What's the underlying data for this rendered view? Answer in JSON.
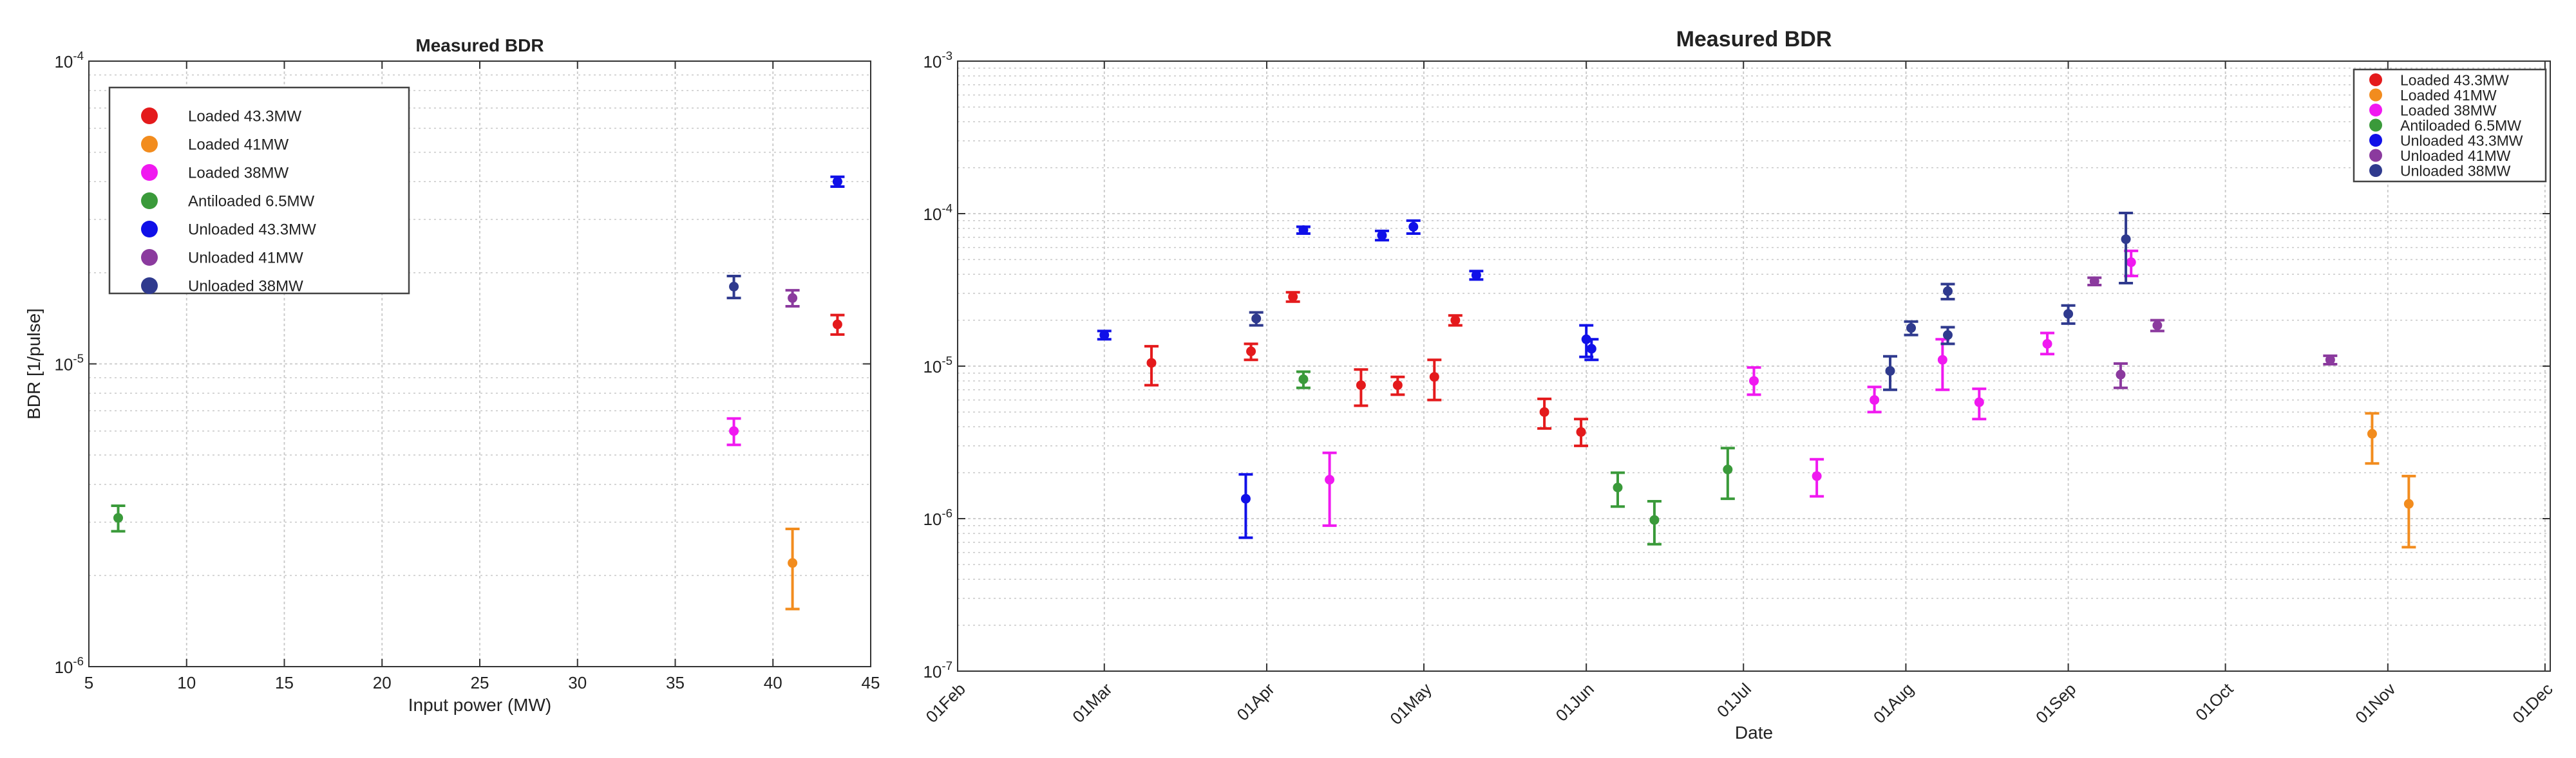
{
  "colors": {
    "series": [
      "#e41a1c",
      "#f28c1e",
      "#f019f0",
      "#3a9a3a",
      "#1010e8",
      "#8b3a9e",
      "#2f3a8e"
    ],
    "grid": "#c8c8c8",
    "axis": "#333333"
  },
  "chart_data": [
    {
      "type": "scatter",
      "title": "Measured BDR",
      "xlabel": "Input power (MW)",
      "ylabel": "BDR [1/pulse]",
      "xlim": [
        5,
        45
      ],
      "ylim": [
        1e-06,
        0.0001
      ],
      "yscale": "log",
      "x_ticks": [
        5,
        10,
        15,
        20,
        25,
        30,
        35,
        40,
        45
      ],
      "x_tick_labels": [
        "5",
        "10",
        "15",
        "20",
        "25",
        "30",
        "35",
        "40",
        "45"
      ],
      "y_ticks": [
        {
          "value": 1e-06,
          "base": "10",
          "exp": "-6"
        },
        {
          "value": 1e-05,
          "base": "10",
          "exp": "-5"
        },
        {
          "value": 0.0001,
          "base": "10",
          "exp": "-4"
        }
      ],
      "legend_position": "top-left",
      "series": [
        {
          "name": "Loaded 43.3MW",
          "points": [
            {
              "x": 43.3,
              "y": 1.35e-05,
              "lo": 1.25e-05,
              "hi": 1.45e-05
            }
          ]
        },
        {
          "name": "Loaded 41MW",
          "points": [
            {
              "x": 41.0,
              "y": 2.2e-06,
              "lo": 1.55e-06,
              "hi": 2.85e-06
            }
          ]
        },
        {
          "name": "Loaded 38MW",
          "points": [
            {
              "x": 38.0,
              "y": 6e-06,
              "lo": 5.4e-06,
              "hi": 6.6e-06
            }
          ]
        },
        {
          "name": "Antiloaded 6.5MW",
          "points": [
            {
              "x": 6.5,
              "y": 3.1e-06,
              "lo": 2.8e-06,
              "hi": 3.4e-06
            }
          ]
        },
        {
          "name": "Unloaded 43.3MW",
          "points": [
            {
              "x": 43.3,
              "y": 4e-05,
              "lo": 3.85e-05,
              "hi": 4.15e-05
            }
          ]
        },
        {
          "name": "Unloaded 41MW",
          "points": [
            {
              "x": 41.0,
              "y": 1.65e-05,
              "lo": 1.55e-05,
              "hi": 1.75e-05
            }
          ]
        },
        {
          "name": "Unloaded 38MW",
          "points": [
            {
              "x": 38.0,
              "y": 1.8e-05,
              "lo": 1.65e-05,
              "hi": 1.95e-05
            }
          ]
        }
      ]
    },
    {
      "type": "scatter",
      "title": "Measured BDR",
      "xlabel": "Date",
      "ylabel": "",
      "xlim": [
        0,
        304
      ],
      "x_unit": "days since 01 Feb",
      "ylim": [
        1e-07,
        0.001
      ],
      "yscale": "log",
      "x_ticks": [
        0,
        28,
        59,
        89,
        120,
        150,
        181,
        212,
        242,
        273,
        303
      ],
      "x_tick_labels": [
        "01Feb",
        "01Mar",
        "01Apr",
        "01May",
        "01Jun",
        "01Jul",
        "01Aug",
        "01Sep",
        "01Oct",
        "01Nov",
        "01Dec"
      ],
      "y_ticks": [
        {
          "value": 1e-07,
          "base": "10",
          "exp": "-7"
        },
        {
          "value": 1e-06,
          "base": "10",
          "exp": "-6"
        },
        {
          "value": 1e-05,
          "base": "10",
          "exp": "-5"
        },
        {
          "value": 0.0001,
          "base": "10",
          "exp": "-4"
        },
        {
          "value": 0.001,
          "base": "10",
          "exp": "-3"
        }
      ],
      "legend_position": "top-right",
      "series": [
        {
          "name": "Loaded 43.3MW",
          "points": [
            {
              "x": 37,
              "y": 1.05e-05,
              "lo": 7.5e-06,
              "hi": 1.35e-05
            },
            {
              "x": 56,
              "y": 1.25e-05,
              "lo": 1.1e-05,
              "hi": 1.4e-05
            },
            {
              "x": 64,
              "y": 2.85e-05,
              "lo": 2.65e-05,
              "hi": 3.05e-05
            },
            {
              "x": 77,
              "y": 7.5e-06,
              "lo": 5.5e-06,
              "hi": 9.5e-06
            },
            {
              "x": 84,
              "y": 7.5e-06,
              "lo": 6.5e-06,
              "hi": 8.5e-06
            },
            {
              "x": 91,
              "y": 8.5e-06,
              "lo": 6e-06,
              "hi": 1.1e-05
            },
            {
              "x": 95,
              "y": 2e-05,
              "lo": 1.85e-05,
              "hi": 2.15e-05
            },
            {
              "x": 112,
              "y": 5e-06,
              "lo": 3.9e-06,
              "hi": 6.1e-06
            },
            {
              "x": 119,
              "y": 3.7e-06,
              "lo": 3e-06,
              "hi": 4.5e-06
            }
          ]
        },
        {
          "name": "Loaded 41MW",
          "points": [
            {
              "x": 270,
              "y": 3.6e-06,
              "lo": 2.3e-06,
              "hi": 4.9e-06
            },
            {
              "x": 277,
              "y": 1.25e-06,
              "lo": 6.5e-07,
              "hi": 1.9e-06
            }
          ]
        },
        {
          "name": "Loaded 38MW",
          "points": [
            {
              "x": 71,
              "y": 1.8e-06,
              "lo": 9e-07,
              "hi": 2.7e-06
            },
            {
              "x": 152,
              "y": 8e-06,
              "lo": 6.5e-06,
              "hi": 9.8e-06
            },
            {
              "x": 164,
              "y": 1.9e-06,
              "lo": 1.4e-06,
              "hi": 2.45e-06
            },
            {
              "x": 175,
              "y": 6e-06,
              "lo": 5e-06,
              "hi": 7.3e-06
            },
            {
              "x": 188,
              "y": 1.1e-05,
              "lo": 7e-06,
              "hi": 1.5e-05
            },
            {
              "x": 195,
              "y": 5.8e-06,
              "lo": 4.5e-06,
              "hi": 7.1e-06
            },
            {
              "x": 208,
              "y": 1.4e-05,
              "lo": 1.2e-05,
              "hi": 1.65e-05
            },
            {
              "x": 224,
              "y": 4.8e-05,
              "lo": 3.9e-05,
              "hi": 5.7e-05
            }
          ]
        },
        {
          "name": "Antiloaded 6.5MW",
          "points": [
            {
              "x": 66,
              "y": 8.2e-06,
              "lo": 7.2e-06,
              "hi": 9.2e-06
            },
            {
              "x": 126,
              "y": 1.6e-06,
              "lo": 1.2e-06,
              "hi": 2e-06
            },
            {
              "x": 133,
              "y": 9.8e-07,
              "lo": 6.8e-07,
              "hi": 1.3e-06
            },
            {
              "x": 147,
              "y": 2.1e-06,
              "lo": 1.35e-06,
              "hi": 2.9e-06
            }
          ]
        },
        {
          "name": "Unloaded 43.3MW",
          "points": [
            {
              "x": 28,
              "y": 1.6e-05,
              "lo": 1.5e-05,
              "hi": 1.7e-05
            },
            {
              "x": 55,
              "y": 1.35e-06,
              "lo": 7.5e-07,
              "hi": 1.95e-06
            },
            {
              "x": 66,
              "y": 7.8e-05,
              "lo": 7.4e-05,
              "hi": 8.2e-05
            },
            {
              "x": 81,
              "y": 7.2e-05,
              "lo": 6.7e-05,
              "hi": 7.7e-05
            },
            {
              "x": 87,
              "y": 8.2e-05,
              "lo": 7.4e-05,
              "hi": 9e-05
            },
            {
              "x": 99,
              "y": 3.95e-05,
              "lo": 3.7e-05,
              "hi": 4.2e-05
            },
            {
              "x": 120,
              "y": 1.5e-05,
              "lo": 1.15e-05,
              "hi": 1.85e-05
            },
            {
              "x": 121,
              "y": 1.3e-05,
              "lo": 1.1e-05,
              "hi": 1.5e-05
            }
          ]
        },
        {
          "name": "Unloaded 41MW",
          "points": [
            {
              "x": 217,
              "y": 3.6e-05,
              "lo": 3.4e-05,
              "hi": 3.8e-05
            },
            {
              "x": 222,
              "y": 8.8e-06,
              "lo": 7.2e-06,
              "hi": 1.04e-05
            },
            {
              "x": 229,
              "y": 1.85e-05,
              "lo": 1.7e-05,
              "hi": 2e-05
            },
            {
              "x": 262,
              "y": 1.1e-05,
              "lo": 1.03e-05,
              "hi": 1.17e-05
            }
          ]
        },
        {
          "name": "Unloaded 38MW",
          "points": [
            {
              "x": 57,
              "y": 2.05e-05,
              "lo": 1.85e-05,
              "hi": 2.25e-05
            },
            {
              "x": 178,
              "y": 9.3e-06,
              "lo": 7e-06,
              "hi": 1.16e-05
            },
            {
              "x": 182,
              "y": 1.78e-05,
              "lo": 1.6e-05,
              "hi": 1.96e-05
            },
            {
              "x": 189,
              "y": 3.1e-05,
              "lo": 2.75e-05,
              "hi": 3.45e-05
            },
            {
              "x": 189,
              "y": 1.6e-05,
              "lo": 1.4e-05,
              "hi": 1.8e-05
            },
            {
              "x": 212,
              "y": 2.2e-05,
              "lo": 1.9e-05,
              "hi": 2.5e-05
            },
            {
              "x": 223,
              "y": 6.8e-05,
              "lo": 3.5e-05,
              "hi": 0.000101
            }
          ]
        }
      ]
    }
  ]
}
